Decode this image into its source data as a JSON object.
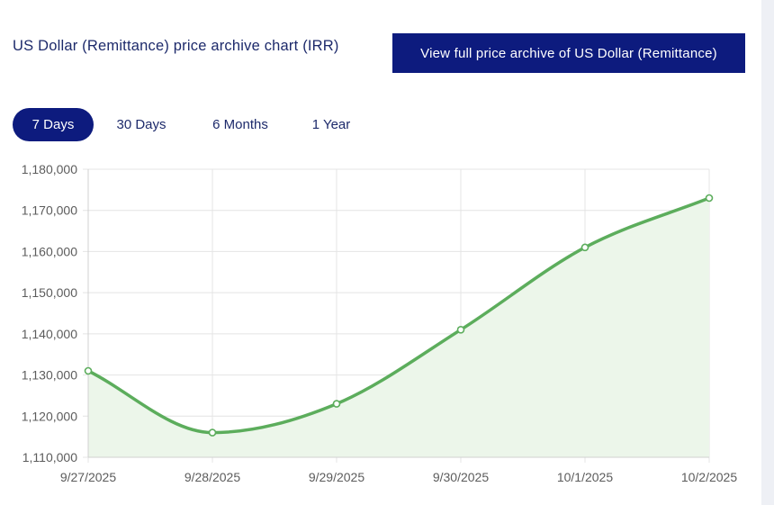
{
  "header": {
    "title": "US Dollar (Remittance) price archive chart (IRR)",
    "archive_button_label": "View full price archive of US Dollar (Remittance)"
  },
  "tabs": [
    {
      "label": "7 Days",
      "active": true
    },
    {
      "label": "30 Days",
      "active": false
    },
    {
      "label": "6 Months",
      "active": false
    },
    {
      "label": "1 Year",
      "active": false
    }
  ],
  "colors": {
    "accent": "#0d1b7e",
    "line": "#5cad5c",
    "fill": "#ecf6ea",
    "grid": "#e4e4e4"
  },
  "chart_data": {
    "type": "area",
    "categories": [
      "9/27/2025",
      "9/28/2025",
      "9/29/2025",
      "9/30/2025",
      "10/1/2025",
      "10/2/2025"
    ],
    "values": [
      1131000,
      1116000,
      1123000,
      1141000,
      1161000,
      1173000
    ],
    "ylim": [
      1110000,
      1180000
    ],
    "yticks": [
      "1,110,000",
      "1,120,000",
      "1,130,000",
      "1,140,000",
      "1,150,000",
      "1,160,000",
      "1,170,000",
      "1,180,000"
    ],
    "ytick_values": [
      1110000,
      1120000,
      1130000,
      1140000,
      1150000,
      1160000,
      1170000,
      1180000
    ],
    "grid": true,
    "legend": "none"
  }
}
